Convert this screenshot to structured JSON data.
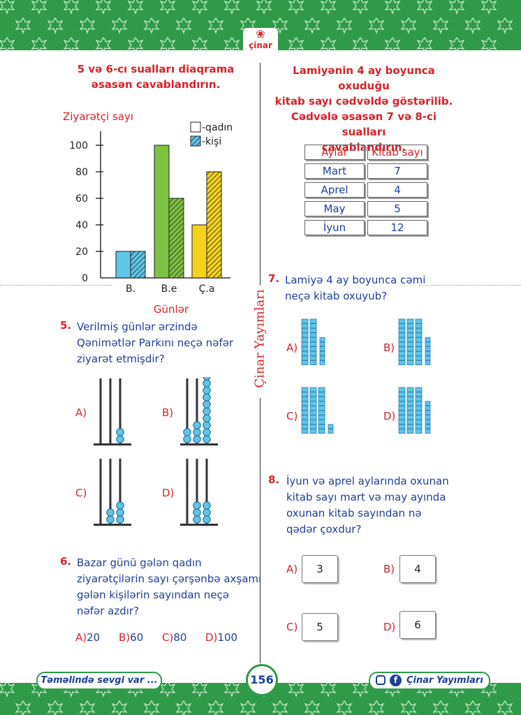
{
  "header": {
    "logo_text": "çinar"
  },
  "left": {
    "heading": "5 və 6-cı sualları diaqrama əsasən cavablandırın.",
    "chart_data": {
      "type": "bar",
      "ylabel": "Ziyarətçi sayı",
      "xlabel": "Günlər",
      "categories": [
        "B.",
        "B.e",
        "Ç.a"
      ],
      "series": [
        {
          "name": "-qadın",
          "values": [
            20,
            100,
            40
          ]
        },
        {
          "name": "-kişi",
          "values": [
            20,
            60,
            80
          ]
        }
      ],
      "bar_colors": [
        "#5ec6e8",
        "#7dc242",
        "#f4d31c"
      ],
      "yticks": [
        "0",
        "20",
        "40",
        "60",
        "80",
        "100"
      ],
      "ylim": [
        0,
        100
      ],
      "legend": "top-right"
    },
    "q5": {
      "num": "5.",
      "text": [
        "Verilmiş günlər ərzində",
        "Qənimətlər Parkını neçə nəfər",
        "ziyarət etmişdir?"
      ],
      "options": [
        {
          "letter": "A)",
          "beads": [
            0,
            0,
            2
          ]
        },
        {
          "letter": "B)",
          "beads": [
            2,
            3,
            10
          ]
        },
        {
          "letter": "C)",
          "beads": [
            0,
            2,
            3
          ]
        },
        {
          "letter": "D)",
          "beads": [
            0,
            3,
            3
          ]
        }
      ]
    },
    "q6": {
      "num": "6.",
      "text": [
        "Bazar günü gələn qadın",
        "ziyarətçilərin sayı çərşənbə axşamı",
        "gələn kişilərin sayından neçə",
        "nəfər azdır?"
      ],
      "options": [
        {
          "letter": "A)",
          "value": "20"
        },
        {
          "letter": "B)",
          "value": "60"
        },
        {
          "letter": "C)",
          "value": "80"
        },
        {
          "letter": "D)",
          "value": "100"
        }
      ]
    }
  },
  "right": {
    "heading": [
      "Lamiyənin 4 ay boyunca oxuduğu",
      "kitab sayı cədvəldə göstərilib.",
      "Cədvələ əsasən 7 və 8-ci sualları",
      "cavablandırın."
    ],
    "table": {
      "headers": [
        "Aylar",
        "Kitab sayı"
      ],
      "rows": [
        [
          "Mart",
          "7"
        ],
        [
          "Aprel",
          "4"
        ],
        [
          "May",
          "5"
        ],
        [
          "İyun",
          "12"
        ]
      ]
    },
    "q7": {
      "num": "7.",
      "text": [
        "Lamiyə 4 ay boyunca cəmi",
        "neçə kitab oxuyub?"
      ],
      "options": [
        {
          "letter": "A)",
          "tens": 2,
          "ones": 6
        },
        {
          "letter": "B)",
          "tens": 3,
          "ones": 6
        },
        {
          "letter": "C)",
          "tens": 3,
          "ones": 2
        },
        {
          "letter": "D)",
          "tens": 3,
          "ones": 7
        }
      ]
    },
    "q8": {
      "num": "8.",
      "text": [
        "İyun və aprel aylarında oxunan",
        "kitab sayı mart və may ayında",
        "oxunan kitab sayından nə",
        "qədər çoxdur?"
      ],
      "options": [
        {
          "letter": "A)",
          "value": "3"
        },
        {
          "letter": "B)",
          "value": "4"
        },
        {
          "letter": "C)",
          "value": "5"
        },
        {
          "letter": "D)",
          "value": "6"
        }
      ]
    }
  },
  "side_label": "Çinar Yayımları",
  "footer": {
    "slogan": "Təməlində sevgi var ...",
    "page": "156",
    "brand": "Çinar Yayımları",
    "icons": [
      "instagram-icon",
      "facebook-icon"
    ]
  }
}
